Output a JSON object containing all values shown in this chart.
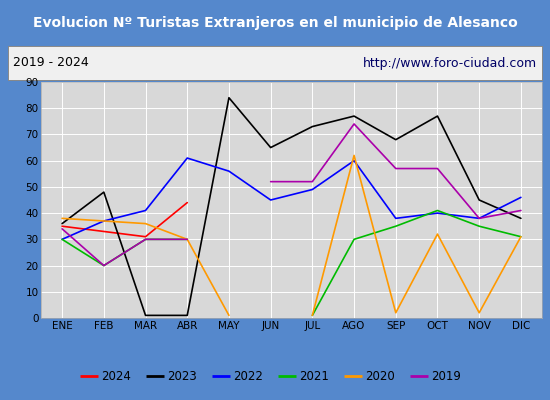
{
  "title": "Evolucion Nº Turistas Extranjeros en el municipio de Alesanco",
  "subtitle_left": "2019 - 2024",
  "subtitle_right": "http://www.foro-ciudad.com",
  "months": [
    "ENE",
    "FEB",
    "MAR",
    "ABR",
    "MAY",
    "JUN",
    "JUL",
    "AGO",
    "SEP",
    "OCT",
    "NOV",
    "DIC"
  ],
  "series": {
    "2024": {
      "color": "#ff0000",
      "linestyle": "-",
      "data": [
        35,
        33,
        31,
        44,
        null,
        null,
        null,
        null,
        null,
        null,
        null,
        null
      ]
    },
    "2023": {
      "color": "#000000",
      "linestyle": "-",
      "data": [
        36,
        48,
        1,
        1,
        84,
        65,
        73,
        77,
        68,
        77,
        45,
        38
      ]
    },
    "2022": {
      "color": "#0000ff",
      "linestyle": "-",
      "data": [
        30,
        37,
        41,
        61,
        56,
        45,
        49,
        60,
        38,
        40,
        38,
        46
      ]
    },
    "2021": {
      "color": "#00bb00",
      "linestyle": "-",
      "data": [
        30,
        20,
        30,
        30,
        null,
        null,
        1,
        30,
        35,
        41,
        35,
        31
      ]
    },
    "2020": {
      "color": "#ff9900",
      "linestyle": "-",
      "data": [
        38,
        37,
        36,
        30,
        1,
        null,
        1,
        62,
        2,
        32,
        2,
        31
      ]
    },
    "2019": {
      "color": "#aa00aa",
      "linestyle": "-",
      "data": [
        34,
        20,
        30,
        30,
        null,
        52,
        52,
        74,
        57,
        57,
        38,
        41
      ]
    }
  },
  "ylim": [
    0,
    90
  ],
  "yticks": [
    0,
    10,
    20,
    30,
    40,
    50,
    60,
    70,
    80,
    90
  ],
  "title_bg": "#5588cc",
  "title_color": "#ffffff",
  "subtitle_bg": "#f0f0f0",
  "plot_bg": "#d8d8d8",
  "grid_color": "#ffffff",
  "outer_bg": "#5588cc",
  "legend_order": [
    "2024",
    "2023",
    "2022",
    "2021",
    "2020",
    "2019"
  ]
}
